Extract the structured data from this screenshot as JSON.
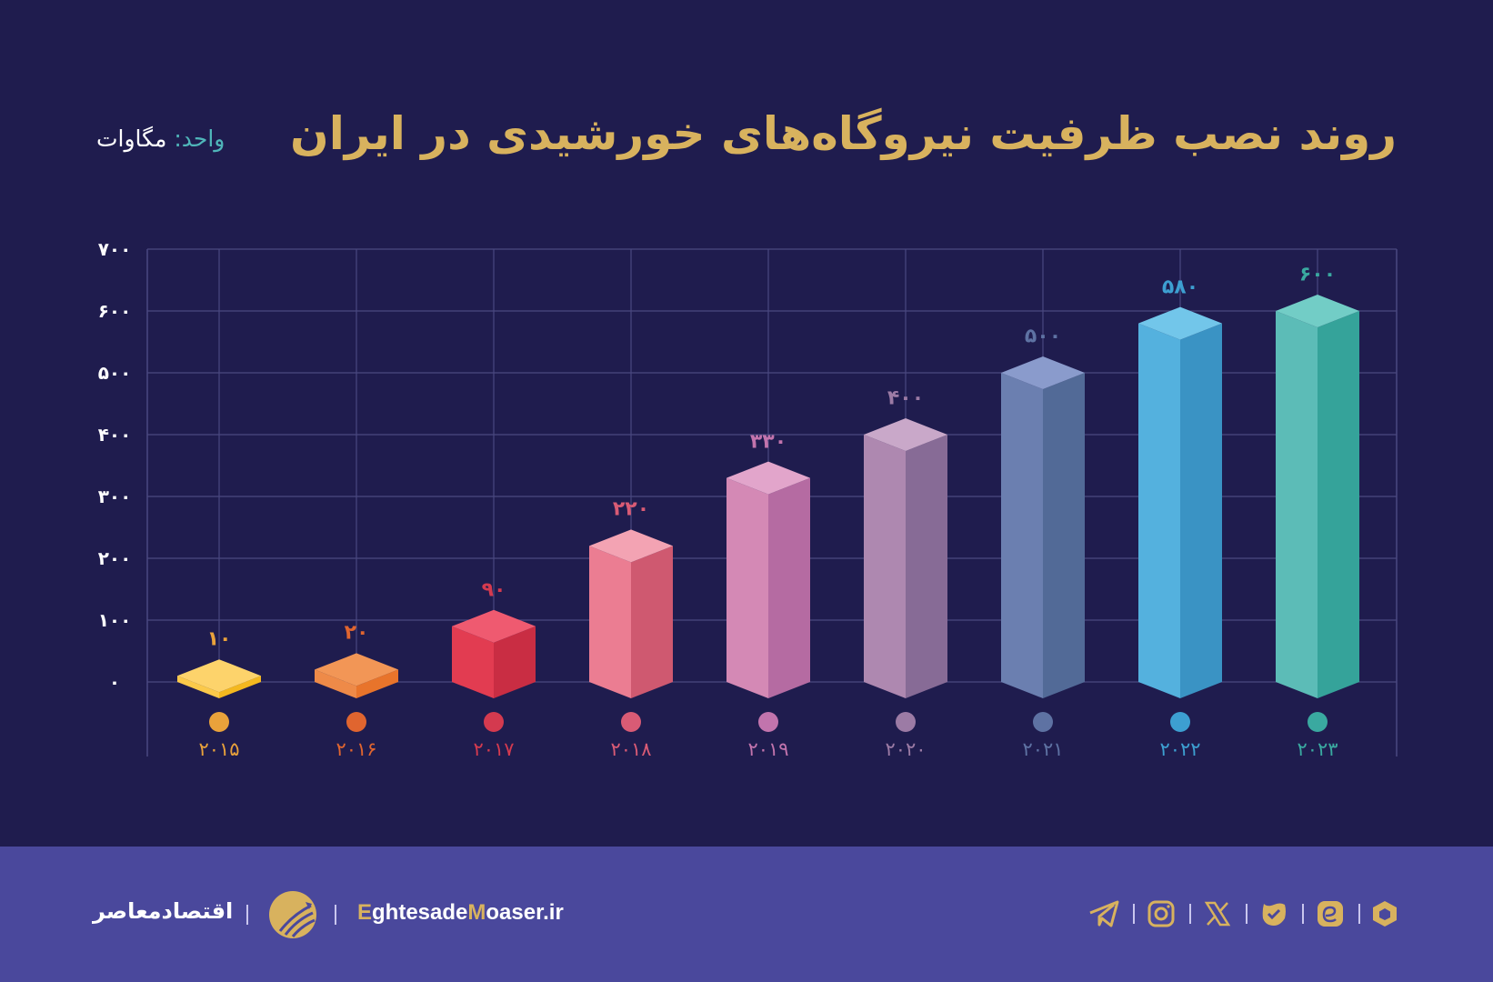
{
  "header": {
    "title": "روند نصب ظرفیت نیروگاه‌های خورشیدی در ایران",
    "unit_label": "واحد:",
    "unit_value": "مگاوات"
  },
  "chart_data": {
    "type": "bar",
    "title": "روند نصب ظرفیت نیروگاه‌های خورشیدی در ایران",
    "xlabel": "",
    "ylabel": "مگاوات",
    "unit": "واحد: مگاوات",
    "categories": [
      "2015",
      "2016",
      "2017",
      "2018",
      "2019",
      "2020",
      "2021",
      "2022",
      "2023"
    ],
    "category_labels": [
      "۲۰۱۵",
      "۲۰۱۶",
      "۲۰۱۷",
      "۲۰۱۸",
      "۲۰۱۹",
      "۲۰۲۰",
      "۲۰۲۱",
      "۲۰۲۲",
      "۲۰۲۳"
    ],
    "values": [
      10,
      20,
      90,
      220,
      330,
      400,
      500,
      580,
      600
    ],
    "value_labels": [
      "۱۰",
      "۲۰",
      "۹۰",
      "۲۲۰",
      "۳۳۰",
      "۴۰۰",
      "۵۰۰",
      "۵۸۰",
      "۶۰۰"
    ],
    "ylim": [
      0,
      700
    ],
    "yticks": [
      0,
      100,
      200,
      300,
      400,
      500,
      600,
      700
    ],
    "ytick_labels": [
      "۰",
      "۱۰۰",
      "۲۰۰",
      "۳۰۰",
      "۴۰۰",
      "۵۰۰",
      "۶۰۰",
      "۷۰۰"
    ],
    "grid": true,
    "legend": "none",
    "style": "3d isometric prisms",
    "colors": [
      {
        "top": "#fdd36b",
        "left": "#fbc94a",
        "right": "#f4b81f",
        "label": "#e9a23b"
      },
      {
        "top": "#f29656",
        "left": "#ee8a48",
        "right": "#e8742b",
        "label": "#e0652f"
      },
      {
        "top": "#ef5a70",
        "left": "#e23c51",
        "right": "#c92d43",
        "label": "#d43a4f"
      },
      {
        "top": "#f3a3b3",
        "left": "#eb7d92",
        "right": "#cf5970",
        "label": "#d95b75"
      },
      {
        "top": "#e2a5cb",
        "left": "#d489b5",
        "right": "#b56ba2",
        "label": "#c274ad"
      },
      {
        "top": "#c9a8c9",
        "left": "#ae88b0",
        "right": "#876b96",
        "label": "#9c7ba5"
      },
      {
        "top": "#8a9bcc",
        "left": "#6b7fb0",
        "right": "#526a97",
        "label": "#5e72a3"
      },
      {
        "top": "#72c6ea",
        "left": "#54b1de",
        "right": "#3a93c4",
        "label": "#3d9fd1"
      },
      {
        "top": "#72cdc6",
        "left": "#5cbcb7",
        "right": "#35a39a",
        "label": "#3aa9a0"
      }
    ]
  },
  "footer": {
    "brand_name": "اقتصادمعاصر",
    "site_prefix_1": "E",
    "site_mid_1": "ghtesade",
    "site_prefix_2": "M",
    "site_mid_2": "oaser.ir",
    "social_icons": [
      "telegram-icon",
      "instagram-icon",
      "x-icon",
      "verified-app-icon",
      "eitaa-icon",
      "hexagon-app-icon"
    ]
  },
  "colors": {
    "background": "#1f1c4e",
    "footer_bg": "#4a489c",
    "accent_gold": "#d8b25e",
    "accent_teal": "#4fb5b9",
    "grid": "#4a4880"
  }
}
